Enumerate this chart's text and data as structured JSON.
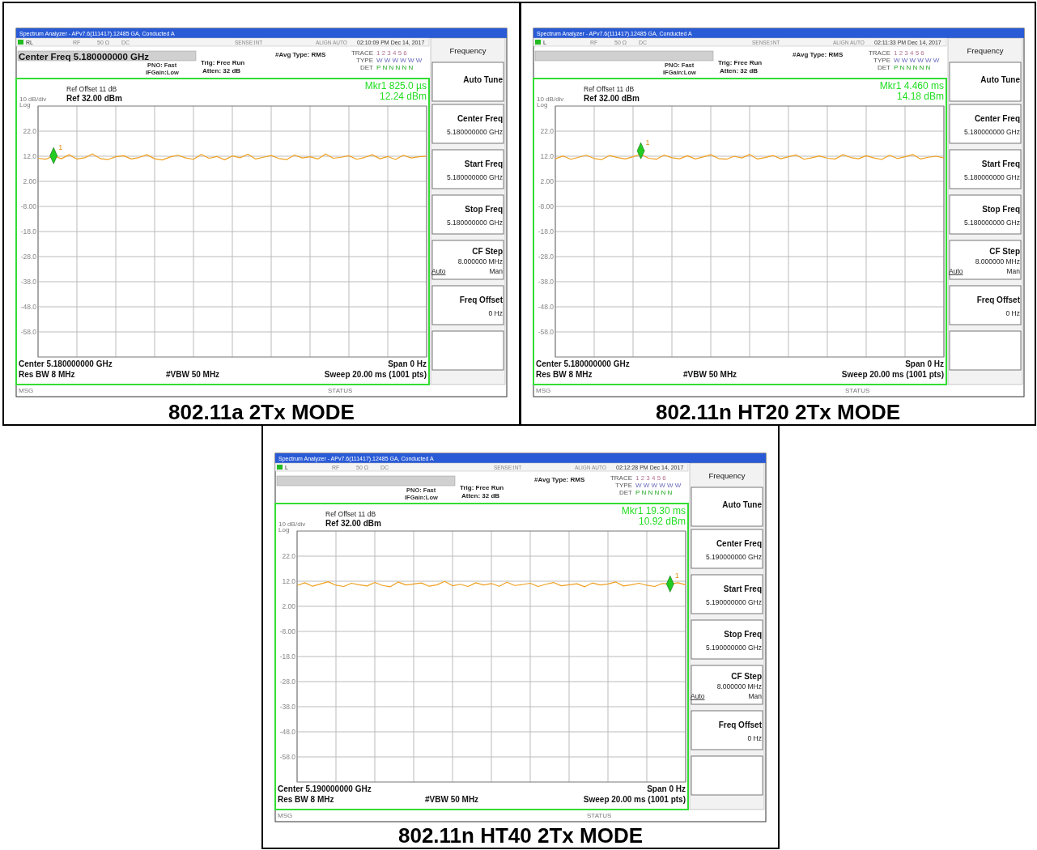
{
  "chart_data": [
    {
      "type": "line",
      "title": "802.11a 2Tx MODE",
      "categories": [
        null,
        null,
        null,
        null,
        null,
        null,
        null,
        null,
        null,
        null,
        null,
        null,
        null,
        null,
        null,
        null,
        null,
        null,
        null,
        null,
        null,
        null,
        null,
        null,
        null,
        null,
        null,
        null,
        null,
        null,
        null,
        null,
        null,
        null,
        null,
        null,
        null,
        null,
        null,
        null,
        null,
        null,
        null,
        null,
        null,
        null,
        null,
        null,
        null,
        null,
        null
      ],
      "ylim": [
        -68,
        32
      ],
      "yticks": [
        {
          "value": 22,
          "label": "22.0"
        },
        {
          "value": 12,
          "label": "12.0"
        },
        {
          "value": 2,
          "label": "2.00"
        },
        {
          "value": -8,
          "label": "-8.00"
        },
        {
          "value": -18,
          "label": "-18.0"
        },
        {
          "value": -28,
          "label": "-28.0"
        },
        {
          "value": -38,
          "label": "-38.0"
        },
        {
          "value": -48,
          "label": "-48.0"
        },
        {
          "value": -58,
          "label": "-58.0"
        }
      ],
      "grid": true,
      "tick_labels": "y",
      "series": [
        {
          "color": "#f0a020",
          "values": [
            11.2,
            10.8,
            12.2,
            11.0,
            12.6,
            10.9,
            11.4,
            12.9,
            11.1,
            10.7,
            11.8,
            12.2,
            10.9,
            11.5,
            12.6,
            11.0,
            10.5,
            11.7,
            12.4,
            11.3,
            10.8,
            12.7,
            11.2,
            11.9,
            10.6,
            12.1,
            11.4,
            12.8,
            10.9,
            11.6,
            12.3,
            11.1,
            10.7,
            12.5,
            11.3,
            11.8,
            10.9,
            12.9,
            11.2,
            11.6,
            12.2,
            10.8,
            11.5,
            12.6,
            11.0,
            11.9,
            10.7,
            12.4,
            11.3,
            11.8,
            12.0
          ]
        },
        {
          "type": "scatter",
          "marker": "diamond",
          "color": "#22cc22",
          "values": [
            null,
            null,
            12.24,
            null,
            null,
            null,
            null,
            null,
            null,
            null,
            null,
            null,
            null,
            null,
            null,
            null,
            null,
            null,
            null,
            null,
            null,
            null,
            null,
            null,
            null,
            null,
            null,
            null,
            null,
            null,
            null,
            null,
            null,
            null,
            null,
            null,
            null,
            null,
            null,
            null,
            null,
            null,
            null,
            null,
            null,
            null,
            null,
            null,
            null,
            null,
            null
          ]
        }
      ],
      "annotations": [
        {
          "text": "1",
          "y": 12.24
        },
        "Spectrum Analyzer - APv7.6(111417).12485 GA, Conducted A",
        "RL",
        "RF",
        "50 Ω",
        "DC",
        "SENSE:INT",
        "ALIGN AUTO",
        "02:10:09 PM Dec 14, 2017",
        "PNO: Fast",
        "IFGain:Low",
        "Trig: Free Run",
        "Atten: 32 dB",
        "#Avg Type: RMS",
        "TRACE",
        "TYPE",
        "DET",
        "1 2 3 4 5 6",
        "W W W W W W",
        "P N N N N N",
        "Ref Offset 11 dB",
        "Ref 32.00 dBm",
        "10 dB/div",
        "Log",
        "Mkr1 825.0 µs",
        "12.24 dBm",
        "Center 5.180000000 GHz",
        "Res BW 8 MHz",
        "#VBW 50 MHz",
        "Span 0 Hz",
        "Sweep  20.00 ms (1001 pts)",
        "MSG",
        "STATUS",
        "Frequency",
        "Auto Tune",
        "Center Freq",
        "5.180000000 GHz",
        "Start Freq",
        "5.180000000 GHz",
        "Stop Freq",
        "5.180000000 GHz",
        "CF Step",
        "8.000000 MHz",
        "Auto",
        "Man",
        "Freq Offset",
        "0 Hz",
        "Center Freq 5.180000000 GHz"
      ]
    },
    {
      "type": "line",
      "title": "802.11n HT20 2Tx MODE",
      "categories": [
        null,
        null,
        null,
        null,
        null,
        null,
        null,
        null,
        null,
        null,
        null,
        null,
        null,
        null,
        null,
        null,
        null,
        null,
        null,
        null,
        null,
        null,
        null,
        null,
        null,
        null,
        null,
        null,
        null,
        null,
        null,
        null,
        null,
        null,
        null,
        null,
        null,
        null,
        null,
        null,
        null,
        null,
        null,
        null,
        null,
        null,
        null,
        null,
        null,
        null,
        null
      ],
      "ylim": [
        -68,
        32
      ],
      "yticks": [
        {
          "value": 22,
          "label": "22.0"
        },
        {
          "value": 12,
          "label": "12.0"
        },
        {
          "value": 2,
          "label": "2.00"
        },
        {
          "value": -8,
          "label": "-8.00"
        },
        {
          "value": -18,
          "label": "-18.0"
        },
        {
          "value": -28,
          "label": "-28.0"
        },
        {
          "value": -38,
          "label": "-38.0"
        },
        {
          "value": -48,
          "label": "-48.0"
        },
        {
          "value": -58,
          "label": "-58.0"
        }
      ],
      "grid": true,
      "tick_labels": "y",
      "series": [
        {
          "color": "#f0a020",
          "values": [
            11.0,
            12.1,
            10.8,
            11.6,
            12.4,
            11.1,
            10.7,
            12.3,
            11.5,
            10.9,
            11.8,
            12.8,
            11.2,
            10.8,
            12.5,
            11.4,
            11.0,
            12.2,
            10.9,
            11.7,
            12.6,
            11.1,
            10.8,
            12.0,
            11.3,
            12.7,
            10.9,
            11.5,
            12.3,
            11.0,
            11.8,
            12.5,
            10.8,
            11.4,
            12.1,
            11.2,
            10.9,
            12.6,
            11.5,
            11.0,
            12.2,
            11.3,
            10.7,
            12.4,
            11.1,
            11.8,
            12.7,
            10.9,
            11.6,
            12.0,
            11.3
          ]
        },
        {
          "type": "scatter",
          "marker": "diamond",
          "color": "#22cc22",
          "values": [
            null,
            null,
            null,
            null,
            null,
            null,
            null,
            null,
            null,
            null,
            null,
            14.18,
            null,
            null,
            null,
            null,
            null,
            null,
            null,
            null,
            null,
            null,
            null,
            null,
            null,
            null,
            null,
            null,
            null,
            null,
            null,
            null,
            null,
            null,
            null,
            null,
            null,
            null,
            null,
            null,
            null,
            null,
            null,
            null,
            null,
            null,
            null,
            null,
            null,
            null,
            null
          ]
        }
      ],
      "annotations": [
        {
          "text": "1",
          "y": 14.18
        },
        "Spectrum Analyzer - APv7.6(111417).12485 GA, Conducted A",
        "L",
        "RF",
        "50 Ω",
        "DC",
        "SENSE:INT",
        "ALIGN AUTO",
        "02:11:33 PM Dec 14, 2017",
        "PNO: Fast",
        "IFGain:Low",
        "Trig: Free Run",
        "Atten: 32 dB",
        "#Avg Type: RMS",
        "TRACE",
        "TYPE",
        "DET",
        "1 2 3 4 5 6",
        "W W W W W W",
        "P N N N N N",
        "Ref Offset 11 dB",
        "Ref 32.00 dBm",
        "10 dB/div",
        "Log",
        "Mkr1 4.460 ms",
        "14.18 dBm",
        "Center 5.180000000 GHz",
        "Res BW 8 MHz",
        "#VBW 50 MHz",
        "Span 0 Hz",
        "Sweep  20.00 ms (1001 pts)",
        "MSG",
        "STATUS",
        "Frequency",
        "Auto Tune",
        "Center Freq",
        "5.180000000 GHz",
        "Start Freq",
        "5.180000000 GHz",
        "Stop Freq",
        "5.180000000 GHz",
        "CF Step",
        "8.000000 MHz",
        "Auto",
        "Man",
        "Freq Offset",
        "0 Hz"
      ]
    },
    {
      "type": "line",
      "title": "802.11n HT40 2Tx MODE",
      "categories": [
        null,
        null,
        null,
        null,
        null,
        null,
        null,
        null,
        null,
        null,
        null,
        null,
        null,
        null,
        null,
        null,
        null,
        null,
        null,
        null,
        null,
        null,
        null,
        null,
        null,
        null,
        null,
        null,
        null,
        null,
        null,
        null,
        null,
        null,
        null,
        null,
        null,
        null,
        null,
        null,
        null,
        null,
        null,
        null,
        null,
        null,
        null,
        null,
        null,
        null,
        null
      ],
      "ylim": [
        -68,
        32
      ],
      "yticks": [
        {
          "value": 22,
          "label": "22.0"
        },
        {
          "value": 12,
          "label": "12.0"
        },
        {
          "value": 2,
          "label": "2.00"
        },
        {
          "value": -8,
          "label": "-8.00"
        },
        {
          "value": -18,
          "label": "-18.0"
        },
        {
          "value": -28,
          "label": "-28.0"
        },
        {
          "value": -38,
          "label": "-38.0"
        },
        {
          "value": -48,
          "label": "-48.0"
        },
        {
          "value": -58,
          "label": "-58.0"
        }
      ],
      "grid": true,
      "tick_labels": "y",
      "series": [
        {
          "color": "#f0a020",
          "values": [
            10.3,
            11.4,
            10.0,
            10.9,
            11.8,
            10.4,
            9.9,
            11.2,
            10.6,
            10.1,
            11.5,
            10.3,
            9.8,
            11.7,
            10.5,
            10.9,
            11.3,
            10.0,
            10.6,
            11.9,
            10.2,
            10.8,
            9.9,
            11.4,
            10.5,
            11.1,
            10.0,
            11.6,
            10.3,
            10.7,
            11.2,
            9.9,
            10.8,
            11.5,
            10.2,
            10.6,
            11.0,
            9.8,
            11.3,
            10.5,
            10.9,
            11.7,
            10.1,
            10.6,
            11.2,
            10.4,
            9.9,
            11.1,
            10.9,
            11.4,
            10.6
          ]
        },
        {
          "type": "scatter",
          "marker": "diamond",
          "color": "#22cc22",
          "values": [
            null,
            null,
            null,
            null,
            null,
            null,
            null,
            null,
            null,
            null,
            null,
            null,
            null,
            null,
            null,
            null,
            null,
            null,
            null,
            null,
            null,
            null,
            null,
            null,
            null,
            null,
            null,
            null,
            null,
            null,
            null,
            null,
            null,
            null,
            null,
            null,
            null,
            null,
            null,
            null,
            null,
            null,
            null,
            null,
            null,
            null,
            null,
            null,
            10.92,
            null,
            null
          ]
        }
      ],
      "annotations": [
        {
          "text": "1",
          "y": 10.92
        },
        "Spectrum Analyzer - APv7.6(111417).12485 GA, Conducted A",
        "L",
        "RF",
        "50 Ω",
        "DC",
        "SENSE:INT",
        "ALIGN AUTO",
        "02:12:28 PM Dec 14, 2017",
        "PNO: Fast",
        "IFGain:Low",
        "Trig: Free Run",
        "Atten: 32 dB",
        "#Avg Type: RMS",
        "TRACE",
        "TYPE",
        "DET",
        "1 2 3 4 5 6",
        "W W W W W W",
        "P N N N N N",
        "Ref Offset 11 dB",
        "Ref 32.00 dBm",
        "10 dB/div",
        "Log",
        "Mkr1 19.30 ms",
        "10.92 dBm",
        "Center 5.190000000 GHz",
        "Res BW 8 MHz",
        "#VBW 50 MHz",
        "Span 0 Hz",
        "Sweep  20.00 ms (1001 pts)",
        "MSG",
        "STATUS",
        "Frequency",
        "Auto Tune",
        "Center Freq",
        "5.190000000 GHz",
        "Start Freq",
        "5.190000000 GHz",
        "Stop Freq",
        "5.190000000 GHz",
        "CF Step",
        "8.000000 MHz",
        "Auto",
        "Man",
        "Freq Offset",
        "0 Hz"
      ]
    }
  ]
}
